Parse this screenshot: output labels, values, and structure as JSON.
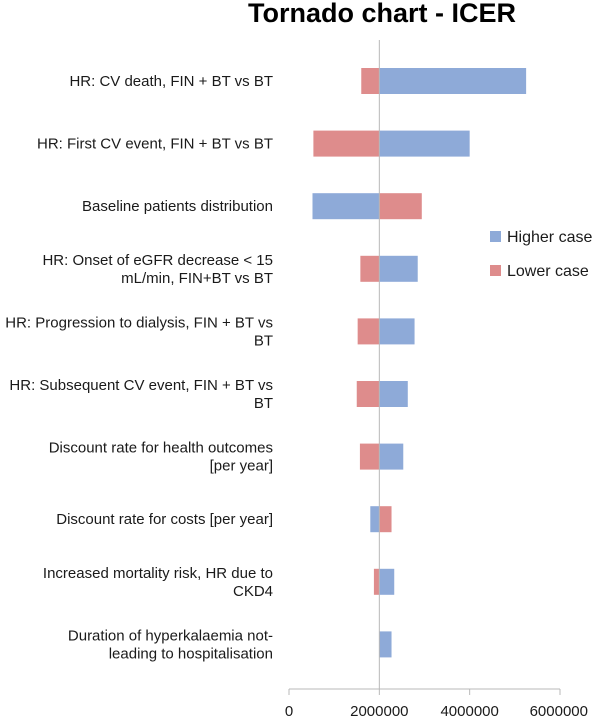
{
  "chart_data": {
    "type": "bar",
    "orientation": "horizontal",
    "title": "Tornado chart - ICER",
    "xlabel": "",
    "ylabel": "",
    "xlim": [
      0,
      6000000
    ],
    "xticks": [
      "0",
      "2000000",
      "4000000",
      "6000000"
    ],
    "xtick_values": [
      0,
      2000000,
      4000000,
      6000000
    ],
    "baseline": 2000000,
    "grid": false,
    "legend_position": "right",
    "categories": [
      [
        "HR: CV death, FIN + BT vs BT"
      ],
      [
        "HR: First CV event, FIN + BT vs BT"
      ],
      [
        "Baseline patients distribution"
      ],
      [
        "HR: Onset of eGFR decrease < 15",
        "mL/min, FIN+BT vs BT"
      ],
      [
        "HR: Progression to dialysis, FIN + BT vs",
        "BT"
      ],
      [
        "HR: Subsequent CV event, FIN + BT vs",
        "BT"
      ],
      [
        "Discount rate for health outcomes",
        "[per year]"
      ],
      [
        "Discount rate for costs [per year]"
      ],
      [
        "Increased mortality risk, HR due to",
        "CKD4"
      ],
      [
        "Duration of hyperkalaemia not-",
        "leading to hospitalisation"
      ]
    ],
    "series": [
      {
        "name": "Higher case",
        "color": "#8eaad8",
        "values": [
          5250000,
          4000000,
          520000,
          2850000,
          2780000,
          2630000,
          2530000,
          1800000,
          2330000,
          2270000
        ]
      },
      {
        "name": "Lower case",
        "color": "#de8c8c",
        "values": [
          1600000,
          540000,
          2940000,
          1580000,
          1520000,
          1500000,
          1570000,
          2270000,
          1880000,
          2000000
        ]
      }
    ]
  }
}
